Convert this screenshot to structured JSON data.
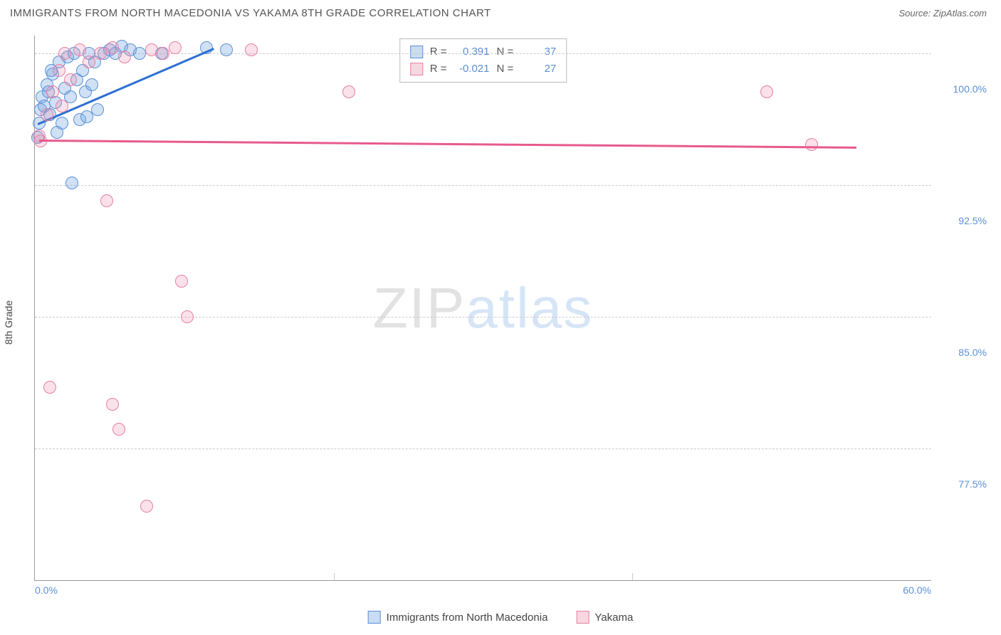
{
  "title": "IMMIGRANTS FROM NORTH MACEDONIA VS YAKAMA 8TH GRADE CORRELATION CHART",
  "source": "Source: ZipAtlas.com",
  "ylabel": "8th Grade",
  "watermark_left": "ZIP",
  "watermark_right": "atlas",
  "chart": {
    "type": "scatter",
    "xlim": [
      0,
      60
    ],
    "ylim": [
      70,
      101
    ],
    "x_ticks": [
      0,
      20,
      40,
      60
    ],
    "x_tick_labels": [
      "0.0%",
      "",
      "",
      "60.0%"
    ],
    "y_ticks": [
      77.5,
      85.0,
      92.5,
      100.0
    ],
    "y_tick_labels": [
      "77.5%",
      "85.0%",
      "92.5%",
      "100.0%"
    ],
    "grid_color": "#cccccc",
    "background_color": "#ffffff",
    "marker_radius": 9,
    "series": [
      {
        "name": "Immigrants from North Macedonia",
        "short": "blue",
        "fill": "rgba(119,168,225,0.35)",
        "stroke": "#5b8fd6",
        "trend_color": "#2d6fd2",
        "R": "0.391",
        "N": "37",
        "points": [
          [
            0.2,
            95.2
          ],
          [
            0.3,
            96.0
          ],
          [
            0.4,
            96.8
          ],
          [
            0.5,
            97.5
          ],
          [
            0.6,
            97.0
          ],
          [
            0.8,
            98.2
          ],
          [
            1.0,
            96.5
          ],
          [
            1.2,
            98.8
          ],
          [
            1.4,
            97.2
          ],
          [
            1.6,
            99.5
          ],
          [
            1.8,
            96.0
          ],
          [
            2.0,
            98.0
          ],
          [
            2.2,
            99.8
          ],
          [
            2.4,
            97.5
          ],
          [
            2.6,
            100.0
          ],
          [
            2.8,
            98.5
          ],
          [
            3.0,
            96.2
          ],
          [
            3.2,
            99.0
          ],
          [
            3.4,
            97.8
          ],
          [
            3.6,
            100.0
          ],
          [
            3.8,
            98.2
          ],
          [
            4.0,
            99.5
          ],
          [
            4.2,
            96.8
          ],
          [
            4.6,
            100.0
          ],
          [
            5.0,
            100.2
          ],
          [
            5.4,
            100.0
          ],
          [
            5.8,
            100.4
          ],
          [
            6.4,
            100.2
          ],
          [
            7.0,
            100.0
          ],
          [
            2.5,
            92.6
          ],
          [
            3.5,
            96.4
          ],
          [
            1.5,
            95.5
          ],
          [
            0.9,
            97.8
          ],
          [
            1.1,
            99.0
          ],
          [
            11.5,
            100.3
          ],
          [
            12.8,
            100.2
          ],
          [
            8.5,
            100.0
          ]
        ],
        "trend": {
          "x1": 0.2,
          "y1": 96.0,
          "x2": 12.0,
          "y2": 100.3
        }
      },
      {
        "name": "Yakama",
        "short": "pink",
        "fill": "rgba(238,140,170,0.25)",
        "stroke": "#e77fa3",
        "trend_color": "#e75a8d",
        "R": "-0.021",
        "N": "27",
        "points": [
          [
            0.4,
            95.0
          ],
          [
            0.8,
            96.5
          ],
          [
            1.2,
            97.8
          ],
          [
            1.6,
            99.0
          ],
          [
            2.0,
            100.0
          ],
          [
            2.4,
            98.5
          ],
          [
            3.0,
            100.2
          ],
          [
            3.6,
            99.5
          ],
          [
            4.4,
            100.0
          ],
          [
            5.2,
            100.3
          ],
          [
            6.0,
            99.8
          ],
          [
            7.8,
            100.2
          ],
          [
            8.6,
            100.0
          ],
          [
            9.4,
            100.3
          ],
          [
            14.5,
            100.2
          ],
          [
            21.0,
            97.8
          ],
          [
            49.0,
            97.8
          ],
          [
            52.0,
            94.8
          ],
          [
            1.0,
            81.0
          ],
          [
            4.8,
            91.6
          ],
          [
            9.8,
            87.0
          ],
          [
            10.2,
            85.0
          ],
          [
            5.6,
            78.6
          ],
          [
            5.2,
            80.0
          ],
          [
            7.5,
            74.2
          ],
          [
            0.3,
            95.3
          ],
          [
            1.8,
            97.0
          ]
        ],
        "trend": {
          "x1": 0.3,
          "y1": 95.1,
          "x2": 55.0,
          "y2": 94.7
        }
      }
    ]
  },
  "legend": {
    "r_label": "R =",
    "n_label": "N ="
  },
  "bottom_legend": [
    {
      "color": "blue",
      "label": "Immigrants from North Macedonia"
    },
    {
      "color": "pink",
      "label": "Yakama"
    }
  ]
}
